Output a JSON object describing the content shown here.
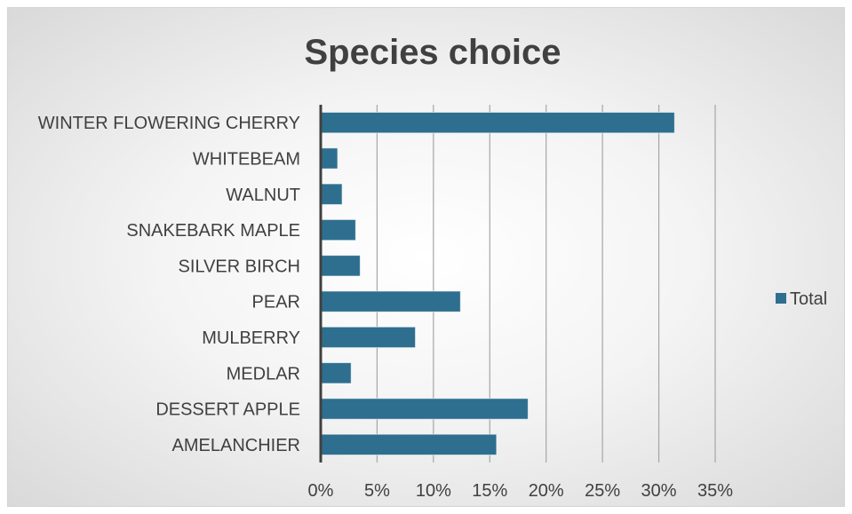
{
  "chart_data": {
    "type": "bar",
    "orientation": "horizontal",
    "title": "Species choice",
    "xlabel": "",
    "ylabel": "",
    "categories": [
      "WINTER FLOWERING CHERRY",
      "WHITEBEAM",
      "WALNUT",
      "SNAKEBARK MAPLE",
      "SILVER BIRCH",
      "PEAR",
      "MULBERRY",
      "MEDLAR",
      "DESSERT APPLE",
      "AMELANCHIER"
    ],
    "series": [
      {
        "name": "Total",
        "values": [
          0.314,
          0.015,
          0.019,
          0.031,
          0.035,
          0.124,
          0.084,
          0.027,
          0.184,
          0.156
        ],
        "color": "#2e6f8f"
      }
    ],
    "xlim": [
      0,
      0.35
    ],
    "xticks": [
      0,
      0.05,
      0.1,
      0.15,
      0.2,
      0.25,
      0.3,
      0.35
    ],
    "xtick_labels": [
      "0%",
      "5%",
      "10%",
      "15%",
      "20%",
      "25%",
      "30%",
      "35%"
    ],
    "grid": "vertical",
    "legend_position": "right"
  }
}
